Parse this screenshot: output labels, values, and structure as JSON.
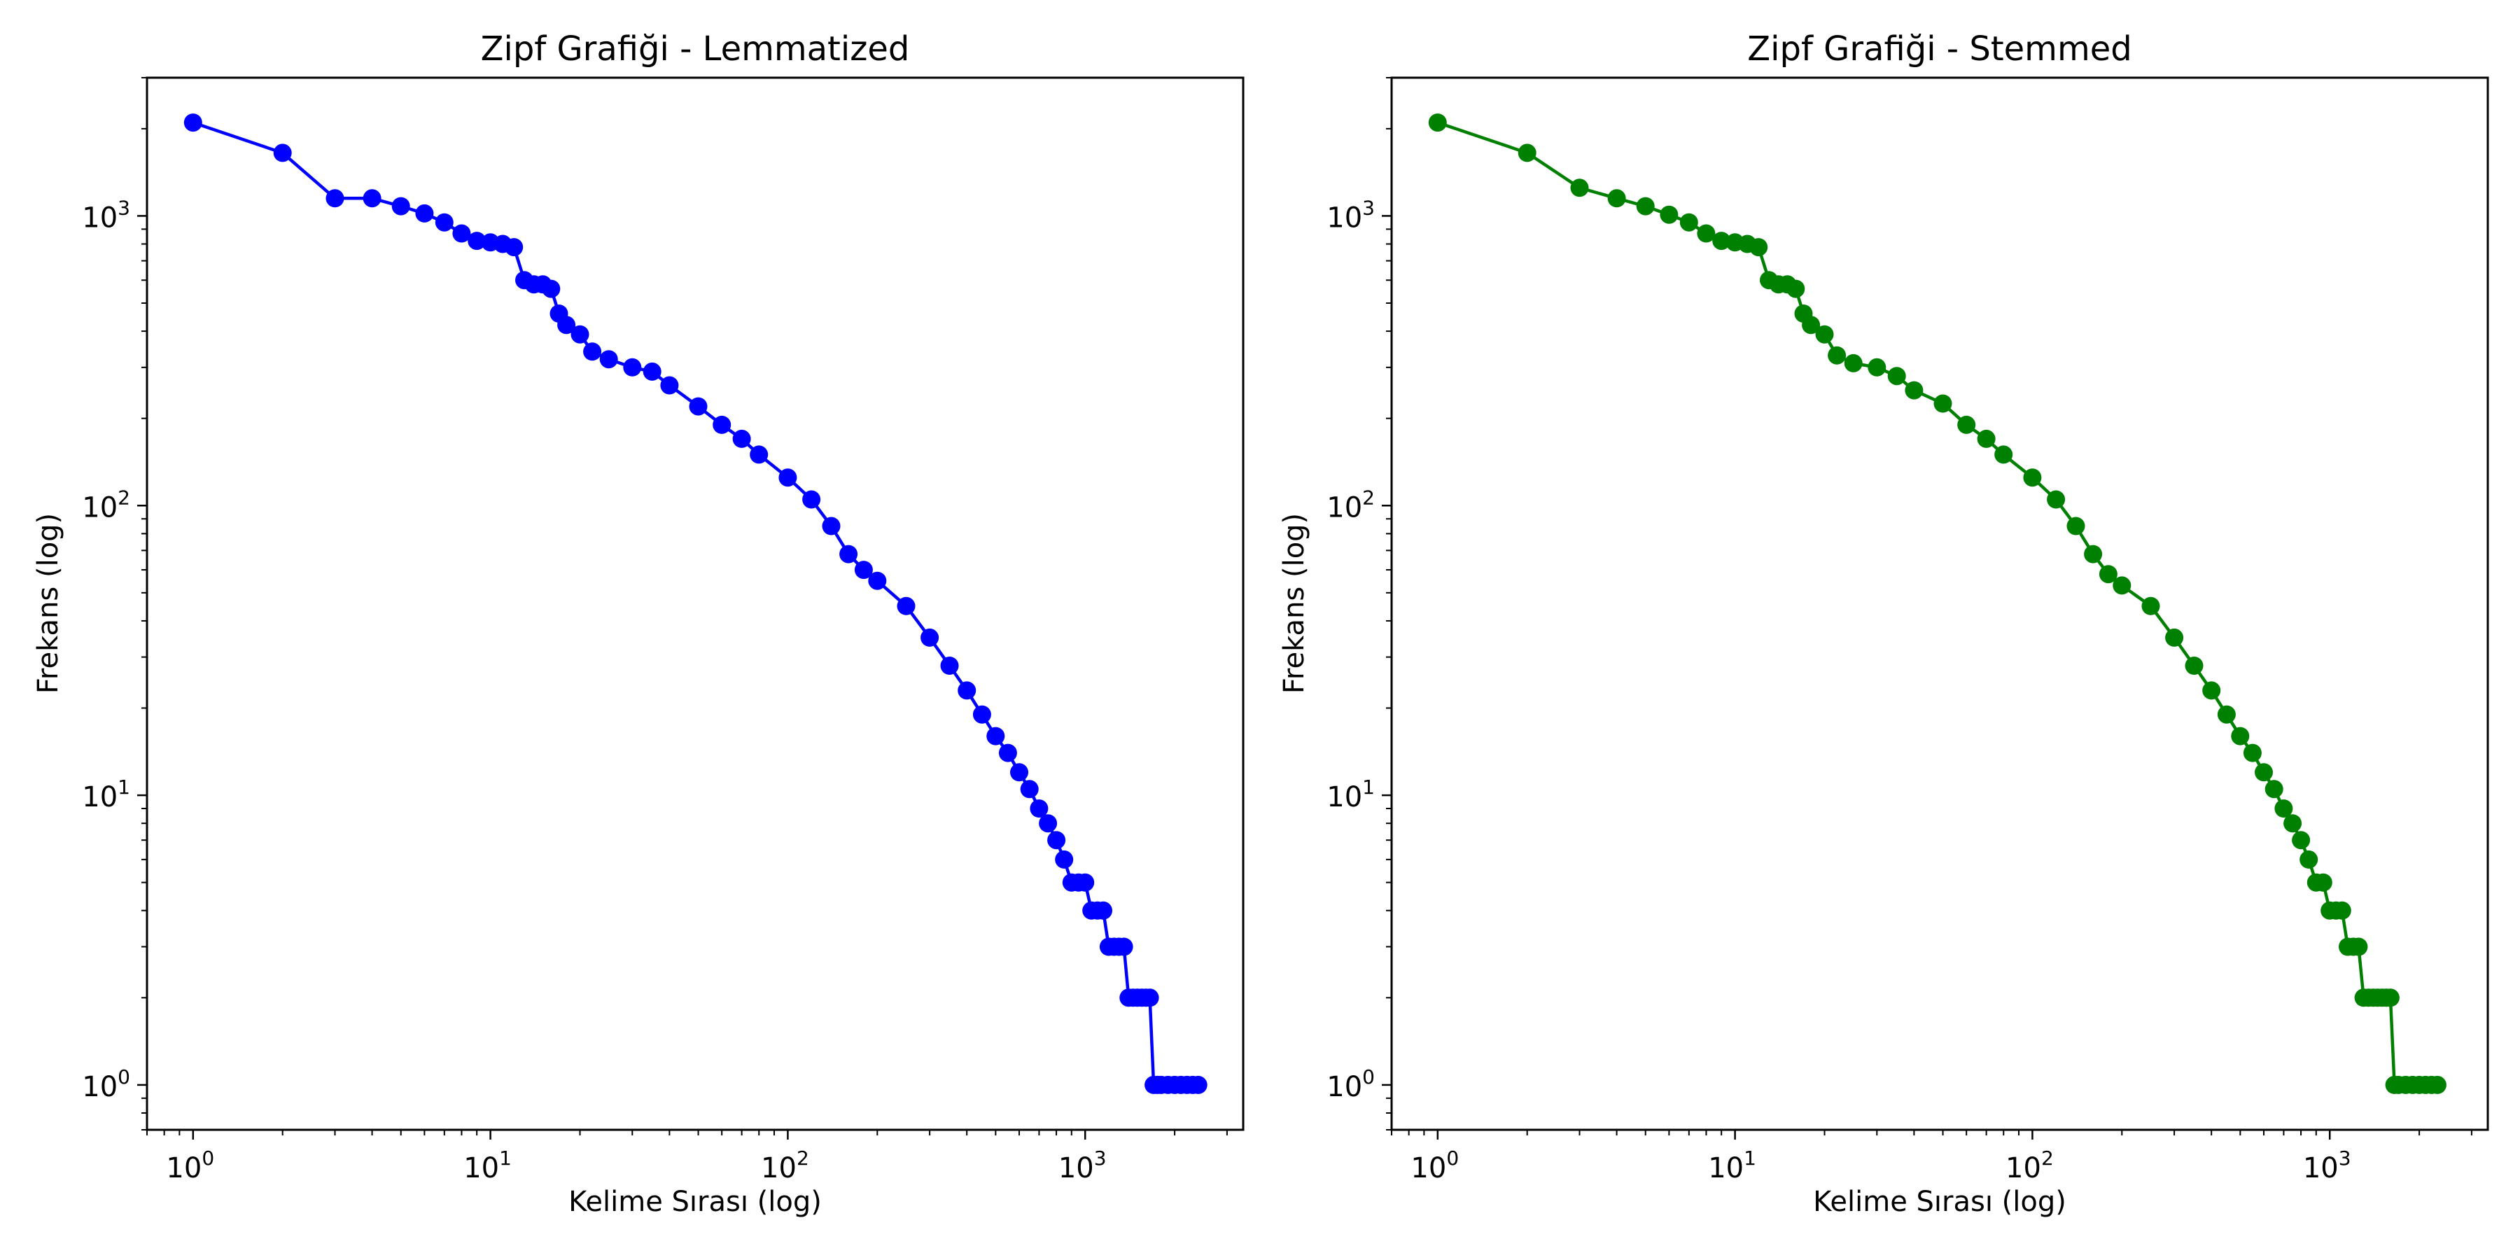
{
  "chart_data": [
    {
      "type": "line",
      "title": "Zipf Grafiği - Lemmatized",
      "xlabel": "Kelime Sırası (log)",
      "ylabel": "Frekans (log)",
      "xscale": "log",
      "yscale": "log",
      "xlim": [
        0.7,
        3400
      ],
      "ylim": [
        0.7,
        3000
      ],
      "grid": false,
      "color": "#0000ff",
      "marker": "circle",
      "x_ticks": [
        {
          "base": "10",
          "exp": "0"
        },
        {
          "base": "10",
          "exp": "1"
        },
        {
          "base": "10",
          "exp": "2"
        },
        {
          "base": "10",
          "exp": "3"
        }
      ],
      "y_ticks": [
        {
          "base": "10",
          "exp": "0"
        },
        {
          "base": "10",
          "exp": "1"
        },
        {
          "base": "10",
          "exp": "2"
        },
        {
          "base": "10",
          "exp": "3"
        }
      ],
      "series": [
        {
          "x": [
            1,
            2,
            3,
            4,
            5,
            6,
            7,
            8,
            9,
            10,
            11,
            12,
            13,
            14,
            15,
            16,
            17,
            18,
            20,
            22,
            25,
            30,
            35,
            40,
            50,
            60,
            70,
            80,
            100,
            120,
            140,
            160,
            180,
            200,
            250,
            300,
            350,
            400,
            450,
            500,
            550,
            600,
            650,
            700,
            750,
            800,
            850,
            900,
            950,
            1000,
            1050,
            1100,
            1150,
            1200,
            1250,
            1300,
            1350,
            1400,
            1450,
            1500,
            1550,
            1600,
            1650,
            1700,
            1750,
            1800,
            1900,
            2000,
            2100,
            2200,
            2300,
            2400
          ],
          "y": [
            2100,
            1650,
            1150,
            1150,
            1080,
            1020,
            950,
            870,
            820,
            810,
            800,
            780,
            600,
            580,
            580,
            560,
            460,
            420,
            390,
            340,
            320,
            300,
            290,
            260,
            220,
            190,
            170,
            150,
            125,
            105,
            85,
            68,
            60,
            55,
            45,
            35,
            28,
            23,
            19,
            16,
            14,
            12,
            10.5,
            9,
            8,
            7,
            6,
            5,
            5,
            5,
            4,
            4,
            4,
            3,
            3,
            3,
            3,
            2,
            2,
            2,
            2,
            2,
            2,
            1,
            1,
            1,
            1,
            1,
            1,
            1,
            1,
            1
          ]
        }
      ]
    },
    {
      "type": "line",
      "title": "Zipf Grafiği - Stemmed",
      "xlabel": "Kelime Sırası (log)",
      "ylabel": "Frekans (log)",
      "xscale": "log",
      "yscale": "log",
      "xlim": [
        0.7,
        3400
      ],
      "ylim": [
        0.7,
        3000
      ],
      "grid": false,
      "color": "#008000",
      "marker": "circle",
      "x_ticks": [
        {
          "base": "10",
          "exp": "0"
        },
        {
          "base": "10",
          "exp": "1"
        },
        {
          "base": "10",
          "exp": "2"
        },
        {
          "base": "10",
          "exp": "3"
        }
      ],
      "y_ticks": [
        {
          "base": "10",
          "exp": "0"
        },
        {
          "base": "10",
          "exp": "1"
        },
        {
          "base": "10",
          "exp": "2"
        },
        {
          "base": "10",
          "exp": "3"
        }
      ],
      "series": [
        {
          "x": [
            1,
            2,
            3,
            4,
            5,
            6,
            7,
            8,
            9,
            10,
            11,
            12,
            13,
            14,
            15,
            16,
            17,
            18,
            20,
            22,
            25,
            30,
            35,
            40,
            50,
            60,
            70,
            80,
            100,
            120,
            140,
            160,
            180,
            200,
            250,
            300,
            350,
            400,
            450,
            500,
            550,
            600,
            650,
            700,
            750,
            800,
            850,
            900,
            950,
            1000,
            1050,
            1100,
            1150,
            1200,
            1250,
            1300,
            1350,
            1400,
            1450,
            1500,
            1550,
            1600,
            1650,
            1700,
            1800,
            1900,
            2000,
            2100,
            2200,
            2300
          ],
          "y": [
            2100,
            1650,
            1250,
            1150,
            1080,
            1010,
            950,
            870,
            820,
            810,
            800,
            780,
            600,
            580,
            580,
            560,
            460,
            420,
            390,
            330,
            310,
            300,
            280,
            250,
            225,
            190,
            170,
            150,
            125,
            105,
            85,
            68,
            58,
            53,
            45,
            35,
            28,
            23,
            19,
            16,
            14,
            12,
            10.5,
            9,
            8,
            7,
            6,
            5,
            5,
            4,
            4,
            4,
            3,
            3,
            3,
            2,
            2,
            2,
            2,
            2,
            2,
            2,
            1,
            1,
            1,
            1,
            1,
            1,
            1,
            1
          ]
        }
      ]
    }
  ]
}
